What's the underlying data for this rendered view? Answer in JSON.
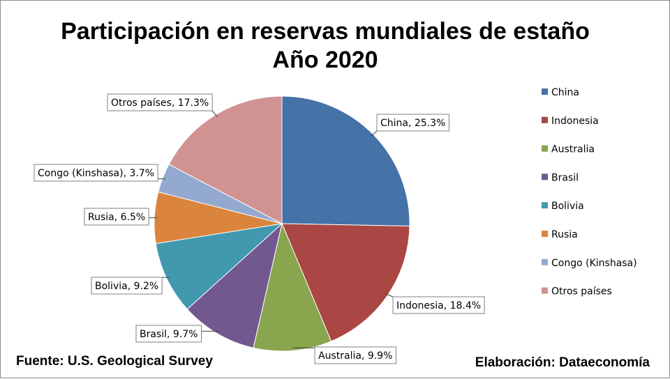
{
  "chart_data": {
    "type": "pie",
    "title": "Participación en reservas mundiales de estaño",
    "subtitle": "Año 2020",
    "slices": [
      {
        "name": "China",
        "value": 25.3,
        "label": "China, 25.3%",
        "color": "#4572A7"
      },
      {
        "name": "Indonesia",
        "value": 18.4,
        "label": "Indonesia, 18.4%",
        "color": "#AA4643"
      },
      {
        "name": "Australia",
        "value": 9.9,
        "label": "Australia, 9.9%",
        "color": "#89A54E"
      },
      {
        "name": "Brasil",
        "value": 9.7,
        "label": "Brasil, 9.7%",
        "color": "#71588F"
      },
      {
        "name": "Bolivia",
        "value": 9.2,
        "label": "Bolivia, 9.2%",
        "color": "#4198AF"
      },
      {
        "name": "Rusia",
        "value": 6.5,
        "label": "Rusia, 6.5%",
        "color": "#DB843D"
      },
      {
        "name": "Congo (Kinshasa)",
        "value": 3.7,
        "label": "Congo (Kinshasa), 3.7%",
        "color": "#93A9CF"
      },
      {
        "name": "Otros países",
        "value": 17.3,
        "label": "Otros países, 17.3%",
        "color": "#D19392"
      }
    ],
    "legend_position": "right"
  },
  "footer": {
    "source": "Fuente: U.S. Geological Survey",
    "credit": "Elaboración: Dataeconomía"
  }
}
